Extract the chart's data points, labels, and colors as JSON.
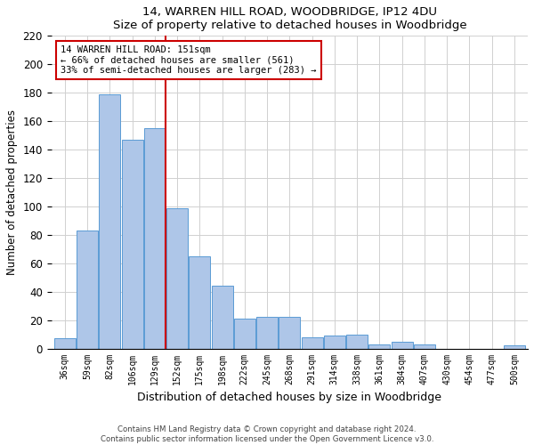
{
  "title1": "14, WARREN HILL ROAD, WOODBRIDGE, IP12 4DU",
  "title2": "Size of property relative to detached houses in Woodbridge",
  "xlabel": "Distribution of detached houses by size in Woodbridge",
  "ylabel": "Number of detached properties",
  "footer1": "Contains HM Land Registry data © Crown copyright and database right 2024.",
  "footer2": "Contains public sector information licensed under the Open Government Licence v3.0.",
  "categories": [
    "36sqm",
    "59sqm",
    "82sqm",
    "106sqm",
    "129sqm",
    "152sqm",
    "175sqm",
    "198sqm",
    "222sqm",
    "245sqm",
    "268sqm",
    "291sqm",
    "314sqm",
    "338sqm",
    "361sqm",
    "384sqm",
    "407sqm",
    "430sqm",
    "454sqm",
    "477sqm",
    "500sqm"
  ],
  "values": [
    7,
    83,
    179,
    147,
    155,
    99,
    65,
    44,
    21,
    22,
    22,
    8,
    9,
    10,
    3,
    5,
    3,
    0,
    0,
    0,
    2
  ],
  "bar_color": "#aec6e8",
  "bar_edge_color": "#5b9bd5",
  "vline_index": 4.5,
  "vline_color": "#cc0000",
  "annotation_line1": "14 WARREN HILL ROAD: 151sqm",
  "annotation_line2": "← 66% of detached houses are smaller (561)",
  "annotation_line3": "33% of semi-detached houses are larger (283) →",
  "annotation_box_color": "#ffffff",
  "annotation_box_edge": "#cc0000",
  "ylim": [
    0,
    220
  ],
  "yticks": [
    0,
    20,
    40,
    60,
    80,
    100,
    120,
    140,
    160,
    180,
    200,
    220
  ],
  "bg_color": "#ffffff",
  "grid_color": "#d0d0d0"
}
